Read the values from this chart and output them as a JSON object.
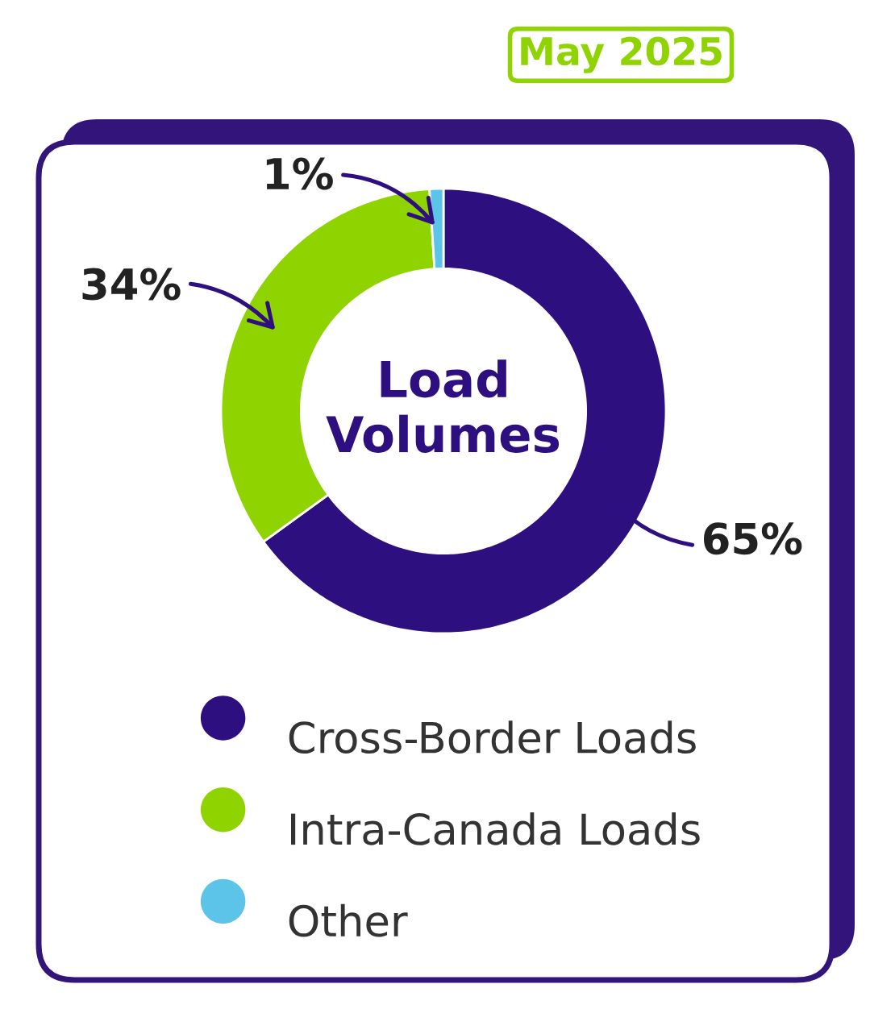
{
  "chart_data": {
    "type": "donut",
    "title": "Load Volumes",
    "subtitle": "May 2025",
    "categories": [
      "Cross-Border Loads",
      "Intra-Canada Loads",
      "Other"
    ],
    "values": [
      65,
      34,
      1
    ],
    "colors": [
      "#2e0f80",
      "#8fd400",
      "#5bc4e8"
    ],
    "value_labels": [
      "65%",
      "34%",
      "1%"
    ],
    "legend": "bottom"
  }
}
